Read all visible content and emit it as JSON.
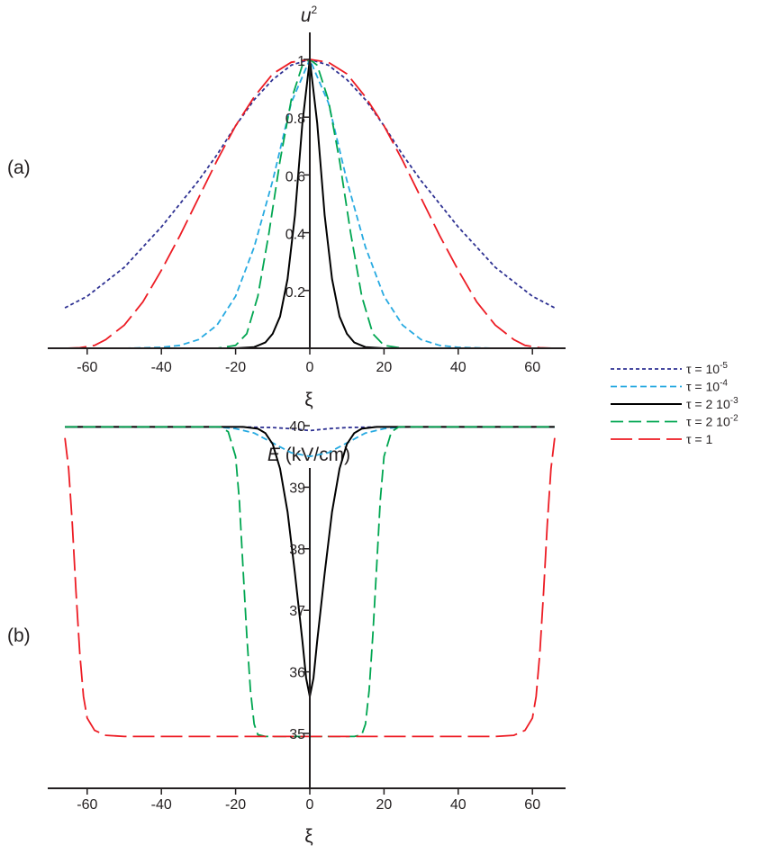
{
  "figure": {
    "panel_a_label": "(a)",
    "panel_b_label": "(b)"
  },
  "colors": {
    "axis": "#231f20",
    "tau_1e-5": "#2e3192",
    "tau_1e-4": "#27aae1",
    "tau_2e-3": "#000000",
    "tau_2e-2": "#00a651",
    "tau_1": "#ed1c24"
  },
  "chart_data": [
    {
      "type": "line",
      "panel": "(a)",
      "title": "",
      "ylabel_italic": "u",
      "ylabel_sup": "2",
      "xlabel": "ξ",
      "xlim": [
        -68,
        68
      ],
      "ylim": [
        0,
        1
      ],
      "x_ticks": [
        -60,
        -40,
        -20,
        0,
        20,
        40,
        60
      ],
      "x_tick_labels": [
        "-60",
        "-40",
        "-20",
        "0",
        "20",
        "40",
        "60"
      ],
      "y_ticks": [
        0.2,
        0.4,
        0.6,
        0.8,
        1
      ],
      "y_tick_labels": [
        "0.2",
        "0.4",
        "0.6",
        "0.8",
        "1"
      ],
      "grid": false,
      "legend_position": "right, between panels",
      "series": [
        {
          "name": "τ = 10-5",
          "key": "tau_1e-5",
          "dash": "4,3",
          "width": 1.8,
          "x": [
            -66,
            -60,
            -55,
            -50,
            -45,
            -40,
            -35,
            -30,
            -25,
            -20,
            -15,
            -10,
            -5,
            0,
            5,
            10,
            15,
            20,
            25,
            30,
            35,
            40,
            45,
            50,
            55,
            60,
            66
          ],
          "y": [
            0.14,
            0.18,
            0.23,
            0.28,
            0.35,
            0.42,
            0.5,
            0.58,
            0.67,
            0.77,
            0.86,
            0.93,
            0.98,
            1.0,
            0.98,
            0.93,
            0.86,
            0.77,
            0.67,
            0.58,
            0.5,
            0.42,
            0.35,
            0.28,
            0.23,
            0.18,
            0.14
          ]
        },
        {
          "name": "τ = 10-4",
          "key": "tau_1e-4",
          "dash": "7,4",
          "width": 1.8,
          "x": [
            -66,
            -50,
            -40,
            -35,
            -30,
            -25,
            -20,
            -15,
            -10,
            -5,
            0,
            5,
            10,
            15,
            20,
            25,
            30,
            35,
            40,
            50,
            66
          ],
          "y": [
            0,
            0,
            0.003,
            0.01,
            0.03,
            0.08,
            0.18,
            0.35,
            0.58,
            0.85,
            1.0,
            0.85,
            0.58,
            0.35,
            0.18,
            0.08,
            0.03,
            0.01,
            0.003,
            0,
            0
          ]
        },
        {
          "name": "τ = 2 10-3",
          "key": "tau_2e-3",
          "dash": "",
          "width": 2.0,
          "x": [
            -66,
            -20,
            -15,
            -12,
            -10,
            -8,
            -6,
            -4,
            -2,
            0,
            2,
            4,
            6,
            8,
            10,
            12,
            15,
            20,
            66
          ],
          "y": [
            0,
            0,
            0.004,
            0.02,
            0.05,
            0.11,
            0.24,
            0.46,
            0.78,
            1.0,
            0.78,
            0.46,
            0.24,
            0.11,
            0.05,
            0.02,
            0.004,
            0,
            0
          ]
        },
        {
          "name": "τ = 2 10-2",
          "key": "tau_2e-2",
          "dash": "14,6",
          "width": 1.8,
          "x": [
            -66,
            -25,
            -20,
            -17,
            -14,
            -11,
            -8,
            -5,
            -2,
            0,
            2,
            5,
            8,
            11,
            14,
            17,
            20,
            25,
            66
          ],
          "y": [
            0,
            0,
            0.01,
            0.05,
            0.18,
            0.4,
            0.65,
            0.86,
            0.98,
            1.0,
            0.98,
            0.86,
            0.65,
            0.4,
            0.18,
            0.05,
            0.01,
            0,
            0
          ]
        },
        {
          "name": "τ = 1",
          "key": "tau_1",
          "dash": "24,7",
          "width": 1.8,
          "x": [
            -66,
            -62,
            -58,
            -55,
            -50,
            -45,
            -40,
            -35,
            -30,
            -25,
            -20,
            -15,
            -10,
            -5,
            0,
            5,
            10,
            15,
            20,
            25,
            30,
            35,
            40,
            45,
            50,
            55,
            58,
            62,
            66
          ],
          "y": [
            0,
            0.002,
            0.01,
            0.03,
            0.08,
            0.16,
            0.27,
            0.39,
            0.52,
            0.65,
            0.77,
            0.87,
            0.95,
            0.99,
            1.0,
            0.99,
            0.95,
            0.87,
            0.77,
            0.65,
            0.52,
            0.39,
            0.27,
            0.16,
            0.08,
            0.03,
            0.01,
            0.002,
            0
          ]
        }
      ]
    },
    {
      "type": "line",
      "panel": "(b)",
      "title": "",
      "ylabel_italic": "E",
      "ylabel_rest": " (kV/cm)",
      "xlabel": "ξ",
      "xlim": [
        -68,
        68
      ],
      "ylim": [
        34,
        40.4
      ],
      "x_ticks": [
        -60,
        -40,
        -20,
        0,
        20,
        40,
        60
      ],
      "x_tick_labels": [
        "-60",
        "-40",
        "-20",
        "0",
        "20",
        "40",
        "60"
      ],
      "y_ticks": [
        35,
        36,
        37,
        38,
        39,
        40
      ],
      "y_tick_labels": [
        "35",
        "36",
        "37",
        "38",
        "39",
        "40"
      ],
      "grid": false,
      "series": [
        {
          "key": "tau_1e-5",
          "dash": "4,3",
          "width": 1.8,
          "x": [
            -66,
            -20,
            -10,
            -5,
            0,
            5,
            10,
            20,
            66
          ],
          "y": [
            39.98,
            39.98,
            39.97,
            39.95,
            39.92,
            39.95,
            39.97,
            39.98,
            39.98
          ]
        },
        {
          "key": "tau_1e-4",
          "dash": "7,4",
          "width": 1.8,
          "x": [
            -66,
            -25,
            -20,
            -15,
            -10,
            -5,
            0,
            5,
            10,
            15,
            20,
            25,
            66
          ],
          "y": [
            39.98,
            39.98,
            39.95,
            39.88,
            39.72,
            39.56,
            39.5,
            39.56,
            39.72,
            39.88,
            39.95,
            39.98,
            39.98
          ]
        },
        {
          "key": "tau_2e-3",
          "dash": "",
          "width": 2.0,
          "x": [
            -66,
            -18,
            -14,
            -12,
            -10,
            -8,
            -6,
            -4,
            -2,
            -1,
            0,
            1,
            2,
            4,
            6,
            8,
            10,
            12,
            14,
            18,
            66
          ],
          "y": [
            39.98,
            39.98,
            39.95,
            39.88,
            39.7,
            39.3,
            38.6,
            37.6,
            36.5,
            35.9,
            35.6,
            35.9,
            36.5,
            37.6,
            38.6,
            39.3,
            39.7,
            39.88,
            39.95,
            39.98,
            39.98
          ]
        },
        {
          "key": "tau_2e-2",
          "dash": "14,6",
          "width": 1.8,
          "x": [
            -66,
            -24,
            -22,
            -20,
            -19,
            -18,
            -17,
            -16,
            -15,
            -14,
            -12,
            -8,
            0,
            8,
            12,
            14,
            15,
            16,
            17,
            18,
            19,
            20,
            22,
            24,
            66
          ],
          "y": [
            39.98,
            39.98,
            39.9,
            39.5,
            38.8,
            37.7,
            36.6,
            35.7,
            35.15,
            34.98,
            34.95,
            34.95,
            34.95,
            34.95,
            34.95,
            34.98,
            35.15,
            35.7,
            36.6,
            37.7,
            38.8,
            39.5,
            39.9,
            39.98,
            39.98
          ]
        },
        {
          "key": "tau_1",
          "dash": "24,7",
          "width": 1.8,
          "x": [
            -66,
            -65,
            -64,
            -63,
            -62,
            -61,
            -60,
            -58,
            -55,
            -50,
            -40,
            -20,
            0,
            20,
            40,
            50,
            55,
            58,
            60,
            61,
            62,
            63,
            64,
            65,
            66
          ],
          "y": [
            39.8,
            39.3,
            38.4,
            37.3,
            36.3,
            35.6,
            35.25,
            35.05,
            34.97,
            34.95,
            34.95,
            34.95,
            34.95,
            34.95,
            34.95,
            34.95,
            34.97,
            35.05,
            35.25,
            35.6,
            36.3,
            37.3,
            38.4,
            39.3,
            39.8
          ]
        }
      ]
    }
  ],
  "legend": [
    {
      "key": "tau_1e-5",
      "prefix": "τ = 10",
      "sup": "-5"
    },
    {
      "key": "tau_1e-4",
      "prefix": "τ = 10",
      "sup": "-4"
    },
    {
      "key": "tau_2e-3",
      "prefix": "τ = 2 10",
      "sup": "-3"
    },
    {
      "key": "tau_2e-2",
      "prefix": "τ = 2 10",
      "sup": "-2"
    },
    {
      "key": "tau_1",
      "prefix": "τ = 1",
      "sup": ""
    }
  ]
}
